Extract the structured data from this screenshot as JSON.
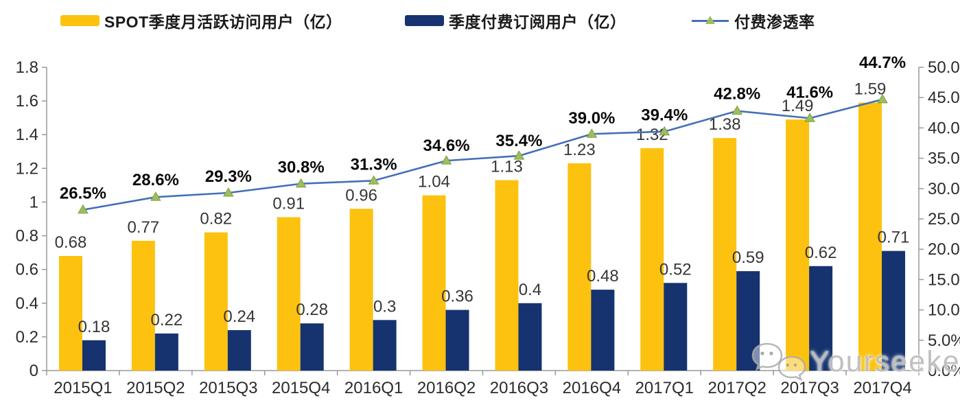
{
  "legend": [
    {
      "label": "SPOT季度月活跃访问用户（亿）",
      "type": "bar",
      "color": "#FCC20F"
    },
    {
      "label": "季度付费订阅用户（亿）",
      "type": "bar",
      "color": "#16336F"
    },
    {
      "label": "付费渗透率",
      "type": "line",
      "color": "#4470B8",
      "marker_color": "#9DBD5E"
    }
  ],
  "chart_data": {
    "type": "bar",
    "subtype": "grouped-bars-with-line",
    "title": "",
    "xlabel": "",
    "ylabel_left": "",
    "ylabel_right": "",
    "grid": false,
    "legend_position": "top",
    "categories": [
      "2015Q1",
      "2015Q2",
      "2015Q3",
      "2015Q4",
      "2016Q1",
      "2016Q2",
      "2016Q3",
      "2016Q4",
      "2017Q1",
      "2017Q2",
      "2017Q3",
      "2017Q4"
    ],
    "series": [
      {
        "key": "mau",
        "name": "SPOT季度月活跃访问用户（亿）",
        "type": "bar",
        "axis": "left",
        "color": "#FCC20F",
        "values": [
          0.68,
          0.77,
          0.82,
          0.91,
          0.96,
          1.04,
          1.13,
          1.23,
          1.32,
          1.38,
          1.49,
          1.59
        ],
        "labels": [
          "0.68",
          "0.77",
          "0.82",
          "0.91",
          "0.96",
          "1.04",
          "1.13",
          "1.23",
          "1.32",
          "1.38",
          "1.49",
          "1.59"
        ]
      },
      {
        "key": "subs",
        "name": "季度付费订阅用户（亿）",
        "type": "bar",
        "axis": "left",
        "color": "#16336F",
        "values": [
          0.18,
          0.22,
          0.24,
          0.28,
          0.3,
          0.36,
          0.4,
          0.48,
          0.52,
          0.59,
          0.62,
          0.71
        ],
        "labels": [
          "0.18",
          "0.22",
          "0.24",
          "0.28",
          "0.3",
          "0.36",
          "0.4",
          "0.48",
          "0.52",
          "0.59",
          "0.62",
          "0.71"
        ]
      },
      {
        "key": "penetration",
        "name": "付费渗透率",
        "type": "line",
        "axis": "right",
        "color": "#4470B8",
        "marker": "triangle-up",
        "marker_fill": "#9DBD5E",
        "marker_stroke": "#7FA040",
        "values": [
          26.5,
          28.6,
          29.3,
          30.8,
          31.3,
          34.6,
          35.4,
          39.0,
          39.4,
          42.8,
          41.6,
          44.7
        ],
        "labels": [
          "26.5%",
          "28.6%",
          "29.3%",
          "30.8%",
          "31.3%",
          "34.6%",
          "35.4%",
          "39.0%",
          "39.4%",
          "42.8%",
          "41.6%",
          "44.7%"
        ],
        "label_dy": [
          -16,
          -17,
          -16,
          -16,
          -16,
          -14,
          -14,
          -15,
          -16,
          -17,
          -30,
          -46
        ]
      }
    ],
    "left_axis": {
      "min": 0,
      "max": 1.8,
      "tick_values": [
        0,
        0.2,
        0.4,
        0.6,
        0.8,
        1,
        1.2,
        1.4,
        1.6,
        1.8
      ],
      "tick_labels": [
        "0",
        "0.2",
        "0.4",
        "0.6",
        "0.8",
        "1",
        "1.2",
        "1.4",
        "1.6",
        "1.8"
      ]
    },
    "right_axis": {
      "min": 0,
      "max": 50,
      "tick_values": [
        0,
        5,
        10,
        15,
        20,
        25,
        30,
        35,
        40,
        45,
        50
      ],
      "tick_labels": [
        "0.0%",
        "5.0%",
        "10.0%",
        "15.0%",
        "20.0%",
        "25.0%",
        "30.0%",
        "35.0%",
        "40.0%",
        "45.0%",
        "50.0%"
      ]
    },
    "colors": {
      "axis": "#999999",
      "tick_text": "#2B2B2B",
      "value_label": "#363636",
      "pct_label": "#0A0A0A"
    }
  },
  "watermark": {
    "text": "Yourseeker",
    "icon": "wechat-icon"
  }
}
